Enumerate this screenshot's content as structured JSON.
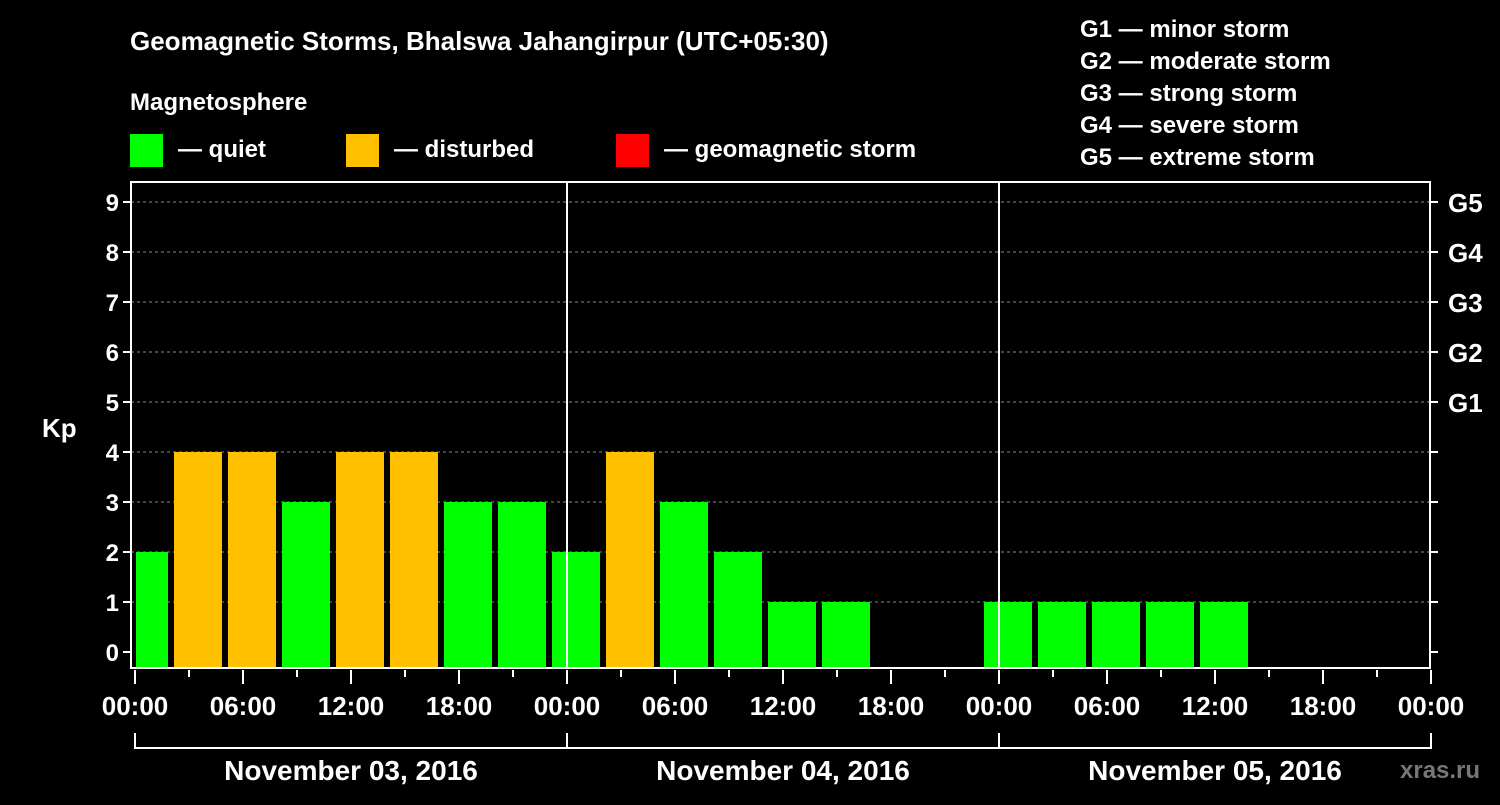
{
  "chart_data": {
    "type": "bar",
    "title": "Geomagnetic Storms, Bhalswa Jahangirpur (UTC+05:30)",
    "legend_title": "Magnetosphere",
    "legend": [
      {
        "label": "— quiet",
        "color": "#00ff00"
      },
      {
        "label": "— disturbed",
        "color": "#ffc000"
      },
      {
        "label": "— geomagnetic storm",
        "color": "#ff0000"
      }
    ],
    "scale_legend": [
      "G1 — minor storm",
      "G2 — moderate storm",
      "G3 — strong storm",
      "G4 — severe storm",
      "G5 — extreme storm"
    ],
    "ylabel": "Kp",
    "ylim": [
      0,
      9
    ],
    "yticks": [
      0,
      1,
      2,
      3,
      4,
      5,
      6,
      7,
      8,
      9
    ],
    "right_ticks": [
      {
        "kp": 5,
        "label": "G1"
      },
      {
        "kp": 6,
        "label": "G2"
      },
      {
        "kp": 7,
        "label": "G3"
      },
      {
        "kp": 8,
        "label": "G4"
      },
      {
        "kp": 9,
        "label": "G5"
      }
    ],
    "xticks": [
      "00:00",
      "06:00",
      "12:00",
      "18:00",
      "00:00",
      "06:00",
      "12:00",
      "18:00",
      "00:00",
      "06:00",
      "12:00",
      "18:00",
      "00:00"
    ],
    "days": [
      "November 03, 2016",
      "November 04, 2016",
      "November 05, 2016"
    ],
    "bar_hours": 3,
    "bars": [
      {
        "start_hour": -1,
        "kp": 2
      },
      {
        "start_hour": 2,
        "kp": 4
      },
      {
        "start_hour": 5,
        "kp": 4
      },
      {
        "start_hour": 8,
        "kp": 3
      },
      {
        "start_hour": 11,
        "kp": 4
      },
      {
        "start_hour": 14,
        "kp": 4
      },
      {
        "start_hour": 17,
        "kp": 3
      },
      {
        "start_hour": 20,
        "kp": 3
      },
      {
        "start_hour": 23,
        "kp": 2
      },
      {
        "start_hour": 26,
        "kp": 4
      },
      {
        "start_hour": 29,
        "kp": 3
      },
      {
        "start_hour": 32,
        "kp": 2
      },
      {
        "start_hour": 35,
        "kp": 1
      },
      {
        "start_hour": 38,
        "kp": 1
      },
      {
        "start_hour": 47,
        "kp": 1
      },
      {
        "start_hour": 50,
        "kp": 1
      },
      {
        "start_hour": 53,
        "kp": 1
      },
      {
        "start_hour": 56,
        "kp": 1
      },
      {
        "start_hour": 59,
        "kp": 1
      }
    ],
    "colors": {
      "quiet": "#00ff00",
      "disturbed": "#ffc000",
      "storm": "#ff0000"
    },
    "watermark": "xras.ru"
  }
}
